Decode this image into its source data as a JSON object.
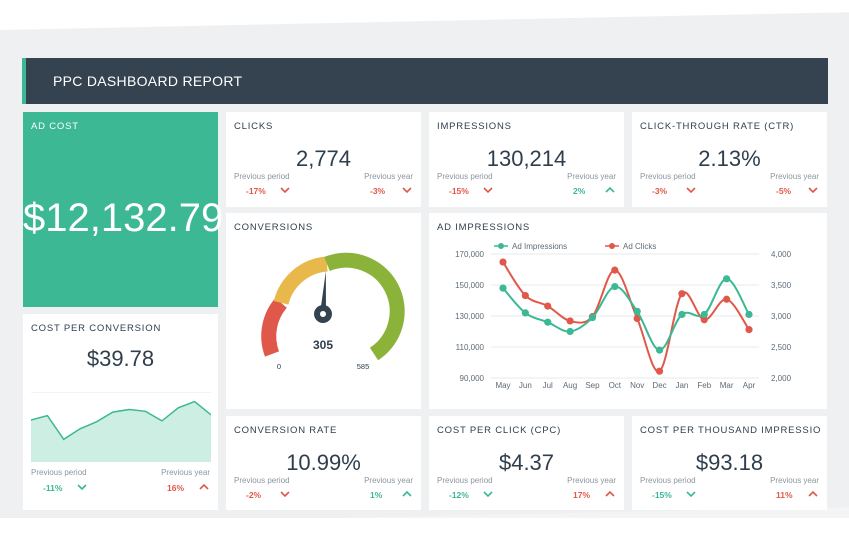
{
  "header": {
    "title": "PPC DASHBOARD REPORT"
  },
  "colors": {
    "accent": "#3cb894",
    "header_bg": "#34434f",
    "negative": "#e0584a",
    "positive": "#3cb894"
  },
  "ad_cost": {
    "label": "AD COST",
    "value": "$12,132.79"
  },
  "compare_labels": {
    "prev_period": "Previous period",
    "prev_year": "Previous year"
  },
  "clicks": {
    "label": "CLICKS",
    "value": "2,774",
    "prev_period": "-17%",
    "prev_year": "-3%"
  },
  "impressions": {
    "label": "IMPRESSIONS",
    "value": "130,214",
    "prev_period": "-15%",
    "prev_year": "2%"
  },
  "ctr": {
    "label": "CLICK-THROUGH RATE (CTR)",
    "value": "2.13%",
    "prev_period": "-3%",
    "prev_year": "-5%"
  },
  "conversions": {
    "label": "CONVERSIONS",
    "value": "305",
    "min": "0",
    "max": "585",
    "gauge": {
      "value": 305,
      "min": 0,
      "max": 585
    }
  },
  "cost_per_conversion": {
    "label": "COST PER CONVERSION",
    "value": "$39.78",
    "prev_period": "-11%",
    "prev_year": "16%",
    "sparkline": [
      68,
      73,
      46,
      58,
      66,
      77,
      80,
      78,
      67,
      82,
      89,
      74
    ]
  },
  "ad_impressions": {
    "label": "AD IMPRESSIONS",
    "legend": [
      "Ad Impressions",
      "Ad Clicks"
    ]
  },
  "conversion_rate": {
    "label": "CONVERSION RATE",
    "value": "10.99%",
    "prev_period": "-2%",
    "prev_year": "1%"
  },
  "cpc": {
    "label": "COST PER CLICK (CPC)",
    "value": "$4.37",
    "prev_period": "-12%",
    "prev_year": "17%"
  },
  "cpm": {
    "label": "COST PER THOUSAND IMPRESSIO...",
    "value": "$93.18",
    "prev_period": "-15%",
    "prev_year": "11%"
  },
  "chart_data": {
    "type": "line",
    "categories": [
      "May",
      "Jun",
      "Jul",
      "Aug",
      "Sep",
      "Oct",
      "Nov",
      "Dec",
      "Jan",
      "Feb",
      "Mar",
      "Apr"
    ],
    "series": [
      {
        "name": "Ad Impressions",
        "axis": "left",
        "color": "#3cb894",
        "values": [
          148000,
          132000,
          126000,
          120000,
          129000,
          149000,
          133000,
          108000,
          131000,
          131000,
          154000,
          131000
        ]
      },
      {
        "name": "Ad Clicks",
        "axis": "right",
        "color": "#e0584a",
        "values": [
          3870,
          3330,
          3160,
          2920,
          2990,
          3740,
          2960,
          2110,
          3360,
          2940,
          3270,
          2780
        ]
      }
    ],
    "y_left": {
      "min": 90000,
      "max": 170000,
      "ticks": [
        "90,000",
        "110,000",
        "130,000",
        "150,000",
        "170,000"
      ]
    },
    "y_right": {
      "min": 2000,
      "max": 4000,
      "ticks": [
        "2,000",
        "2,500",
        "3,000",
        "3,500",
        "4,000"
      ]
    },
    "grid": true,
    "legend_position": "top-left"
  }
}
